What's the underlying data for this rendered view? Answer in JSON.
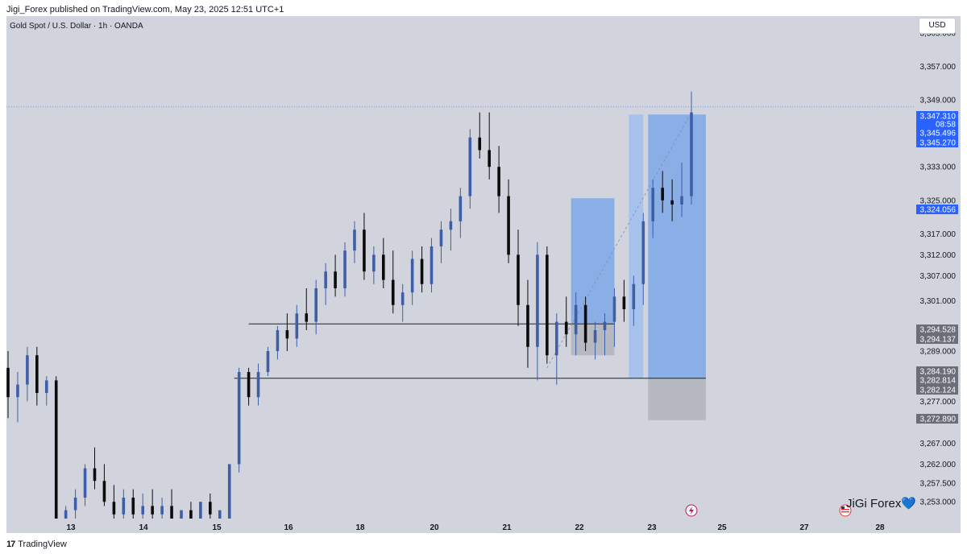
{
  "header": {
    "publish_line": "Jigi_Forex published on TradingView.com, May 23, 2025 12:51 UTC+1"
  },
  "currency_label": "USD",
  "footer": {
    "brand": "TradingView",
    "logo_glyph": "17"
  },
  "watermark": {
    "text": "JiGi Forex",
    "heart_glyph": "💙"
  },
  "colors": {
    "background": "#d1d4dc",
    "bull": "#3f5ea8",
    "bear": "#0b0b0b",
    "zone_blue": "#8aaee6",
    "zone_light": "#a8c2ee",
    "zone_gray": "#b7b9c0",
    "price_line": "#5b6de6",
    "label_blue": "#2962ff",
    "label_gray": "#6b6e78"
  },
  "chart_data": {
    "type": "candlestick",
    "title": "Gold Spot / U.S. Dollar · 1h · OANDA",
    "y_axis": {
      "min": 3249,
      "max": 3369,
      "tick_labels": [
        "3,365.000",
        "3,357.000",
        "3,349.000",
        "3,333.000",
        "3,325.000",
        "3,317.000",
        "3,312.000",
        "3,307.000",
        "3,301.000",
        "3,289.000",
        "3,277.000",
        "3,267.000",
        "3,262.000",
        "3,257.500",
        "3,253.000"
      ]
    },
    "x_axis": {
      "labels": [
        "13",
        "14",
        "15",
        "16",
        "18",
        "20",
        "21",
        "22",
        "23",
        "25",
        "27",
        "28"
      ]
    },
    "candles": [
      {
        "o": 3285,
        "h": 3289,
        "l": 3273,
        "c": 3278
      },
      {
        "o": 3278,
        "h": 3284,
        "l": 3272,
        "c": 3281
      },
      {
        "o": 3281,
        "h": 3290,
        "l": 3277,
        "c": 3288
      },
      {
        "o": 3288,
        "h": 3290,
        "l": 3276,
        "c": 3279
      },
      {
        "o": 3279,
        "h": 3283,
        "l": 3276,
        "c": 3282
      },
      {
        "o": 3282,
        "h": 3283,
        "l": 3249,
        "c": 3249
      },
      {
        "o": 3249,
        "h": 3252,
        "l": 3249,
        "c": 3251
      },
      {
        "o": 3251,
        "h": 3256,
        "l": 3249,
        "c": 3254
      },
      {
        "o": 3254,
        "h": 3262,
        "l": 3252,
        "c": 3261
      },
      {
        "o": 3261,
        "h": 3266,
        "l": 3256,
        "c": 3258
      },
      {
        "o": 3258,
        "h": 3262,
        "l": 3252,
        "c": 3253
      },
      {
        "o": 3253,
        "h": 3257,
        "l": 3249,
        "c": 3250
      },
      {
        "o": 3250,
        "h": 3256,
        "l": 3249,
        "c": 3254
      },
      {
        "o": 3254,
        "h": 3256,
        "l": 3249,
        "c": 3250
      },
      {
        "o": 3250,
        "h": 3255,
        "l": 3249,
        "c": 3252
      },
      {
        "o": 3252,
        "h": 3256,
        "l": 3249,
        "c": 3250
      },
      {
        "o": 3250,
        "h": 3254,
        "l": 3249,
        "c": 3252
      },
      {
        "o": 3252,
        "h": 3256,
        "l": 3249,
        "c": 3249
      },
      {
        "o": 3249,
        "h": 3251,
        "l": 3249,
        "c": 3251
      },
      {
        "o": 3251,
        "h": 3253,
        "l": 3249,
        "c": 3249
      },
      {
        "o": 3249,
        "h": 3253,
        "l": 3249,
        "c": 3253
      },
      {
        "o": 3253,
        "h": 3255,
        "l": 3249,
        "c": 3250
      },
      {
        "o": 3249,
        "h": 3251,
        "l": 3249,
        "c": 3251
      },
      {
        "o": 3249,
        "h": 3262,
        "l": 3249,
        "c": 3262
      },
      {
        "o": 3262,
        "h": 3285,
        "l": 3260,
        "c": 3284
      },
      {
        "o": 3284,
        "h": 3285,
        "l": 3276,
        "c": 3278
      },
      {
        "o": 3278,
        "h": 3286,
        "l": 3276,
        "c": 3284
      },
      {
        "o": 3284,
        "h": 3290,
        "l": 3283,
        "c": 3289
      },
      {
        "o": 3289,
        "h": 3295,
        "l": 3287,
        "c": 3294
      },
      {
        "o": 3294,
        "h": 3298,
        "l": 3289,
        "c": 3292
      },
      {
        "o": 3292,
        "h": 3300,
        "l": 3290,
        "c": 3298
      },
      {
        "o": 3298,
        "h": 3304,
        "l": 3294,
        "c": 3296
      },
      {
        "o": 3296,
        "h": 3306,
        "l": 3293,
        "c": 3304
      },
      {
        "o": 3304,
        "h": 3310,
        "l": 3300,
        "c": 3308
      },
      {
        "o": 3308,
        "h": 3312,
        "l": 3302,
        "c": 3304
      },
      {
        "o": 3304,
        "h": 3315,
        "l": 3302,
        "c": 3313
      },
      {
        "o": 3313,
        "h": 3320,
        "l": 3310,
        "c": 3318
      },
      {
        "o": 3318,
        "h": 3322,
        "l": 3306,
        "c": 3308
      },
      {
        "o": 3308,
        "h": 3314,
        "l": 3305,
        "c": 3312
      },
      {
        "o": 3312,
        "h": 3316,
        "l": 3304,
        "c": 3306
      },
      {
        "o": 3306,
        "h": 3313,
        "l": 3298,
        "c": 3300
      },
      {
        "o": 3300,
        "h": 3305,
        "l": 3296,
        "c": 3303
      },
      {
        "o": 3303,
        "h": 3313,
        "l": 3300,
        "c": 3311
      },
      {
        "o": 3311,
        "h": 3314,
        "l": 3303,
        "c": 3305
      },
      {
        "o": 3305,
        "h": 3316,
        "l": 3303,
        "c": 3314
      },
      {
        "o": 3314,
        "h": 3320,
        "l": 3310,
        "c": 3318
      },
      {
        "o": 3318,
        "h": 3323,
        "l": 3313,
        "c": 3320
      },
      {
        "o": 3320,
        "h": 3328,
        "l": 3316,
        "c": 3326
      },
      {
        "o": 3326,
        "h": 3342,
        "l": 3323,
        "c": 3340
      },
      {
        "o": 3340,
        "h": 3346,
        "l": 3335,
        "c": 3337
      },
      {
        "o": 3337,
        "h": 3346,
        "l": 3330,
        "c": 3333
      },
      {
        "o": 3333,
        "h": 3338,
        "l": 3322,
        "c": 3326
      },
      {
        "o": 3326,
        "h": 3330,
        "l": 3310,
        "c": 3312
      },
      {
        "o": 3312,
        "h": 3318,
        "l": 3295,
        "c": 3300
      },
      {
        "o": 3300,
        "h": 3306,
        "l": 3285,
        "c": 3290
      },
      {
        "o": 3290,
        "h": 3315,
        "l": 3282,
        "c": 3312
      },
      {
        "o": 3312,
        "h": 3314,
        "l": 3286,
        "c": 3288
      },
      {
        "o": 3288,
        "h": 3298,
        "l": 3281,
        "c": 3296
      },
      {
        "o": 3296,
        "h": 3302,
        "l": 3290,
        "c": 3293
      },
      {
        "o": 3293,
        "h": 3303,
        "l": 3288,
        "c": 3300
      },
      {
        "o": 3300,
        "h": 3302,
        "l": 3289,
        "c": 3291
      },
      {
        "o": 3291,
        "h": 3296,
        "l": 3287,
        "c": 3294
      },
      {
        "o": 3294,
        "h": 3298,
        "l": 3288,
        "c": 3296
      },
      {
        "o": 3296,
        "h": 3304,
        "l": 3290,
        "c": 3302
      },
      {
        "o": 3302,
        "h": 3306,
        "l": 3296,
        "c": 3299
      },
      {
        "o": 3299,
        "h": 3307,
        "l": 3295,
        "c": 3305
      },
      {
        "o": 3305,
        "h": 3322,
        "l": 3300,
        "c": 3320
      },
      {
        "o": 3320,
        "h": 3330,
        "l": 3316,
        "c": 3328
      },
      {
        "o": 3328,
        "h": 3332,
        "l": 3322,
        "c": 3325
      },
      {
        "o": 3325,
        "h": 3330,
        "l": 3320,
        "c": 3324
      },
      {
        "o": 3324,
        "h": 3334,
        "l": 3321,
        "c": 3326
      },
      {
        "o": 3326,
        "h": 3351,
        "l": 3324,
        "c": 3346
      }
    ],
    "zones": [
      {
        "kind": "blue",
        "from": 3295.5,
        "to": 3325.5
      },
      {
        "kind": "gray",
        "from": 3288,
        "to": 3295.5
      },
      {
        "kind": "light",
        "from": 3282.5,
        "to": 3345.5
      },
      {
        "kind": "blue",
        "from": 3282.5,
        "to": 3345.5
      },
      {
        "kind": "gray",
        "from": 3272.5,
        "to": 3282.5
      }
    ],
    "horizontal_lines": [
      3295.5,
      3282.5
    ],
    "current_price": 3347.31,
    "price_labels": [
      {
        "text": "3,347.310",
        "style": "blue"
      },
      {
        "text": "08:58",
        "style": "blue"
      },
      {
        "text": "3,345.496",
        "style": "blue"
      },
      {
        "text": "3,345.270",
        "style": "blue"
      },
      {
        "text": "3,324.056",
        "style": "blue"
      },
      {
        "text": "3,294.528",
        "style": "gray"
      },
      {
        "text": "3,294.137",
        "style": "gray"
      },
      {
        "text": "3,284.190",
        "style": "gray"
      },
      {
        "text": "3,282.814",
        "style": "gray"
      },
      {
        "text": "3,282.124",
        "style": "gray"
      },
      {
        "text": "3,272.890",
        "style": "gray"
      }
    ]
  }
}
